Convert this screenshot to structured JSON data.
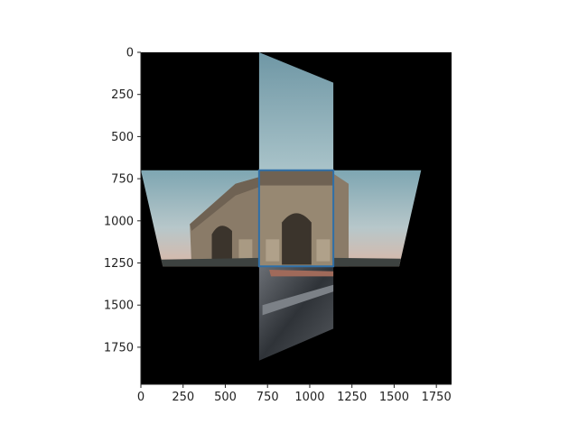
{
  "chart_data": {
    "type": "image",
    "title": "",
    "xlabel": "",
    "ylabel": "",
    "xlim": [
      0,
      1840
    ],
    "ylim": [
      1970,
      0
    ],
    "x_ticks": [
      0,
      250,
      500,
      750,
      1000,
      1250,
      1500,
      1750
    ],
    "y_ticks": [
      0,
      250,
      500,
      750,
      1000,
      1250,
      1500,
      1750
    ],
    "background_color": "#000000",
    "image_faces": [
      {
        "name": "top-face",
        "color": "#86aeb6",
        "points": [
          [
            700,
            0
          ],
          [
            1140,
            180
          ],
          [
            1140,
            700
          ],
          [
            700,
            700
          ]
        ]
      },
      {
        "name": "left-face",
        "color": "#7aa2b0",
        "points": [
          [
            0,
            700
          ],
          [
            700,
            700
          ],
          [
            700,
            1270
          ],
          [
            130,
            1270
          ]
        ]
      },
      {
        "name": "center-face",
        "color": "#8e8272",
        "points": [
          [
            700,
            700
          ],
          [
            1140,
            700
          ],
          [
            1140,
            1270
          ],
          [
            700,
            1270
          ]
        ]
      },
      {
        "name": "right-face",
        "color": "#98b7c0",
        "points": [
          [
            1140,
            700
          ],
          [
            1660,
            700
          ],
          [
            1530,
            1270
          ],
          [
            1140,
            1270
          ]
        ]
      },
      {
        "name": "bottom-face",
        "color": "#4a4f55",
        "points": [
          [
            700,
            1270
          ],
          [
            1140,
            1270
          ],
          [
            1140,
            1640
          ],
          [
            700,
            1830
          ]
        ]
      }
    ],
    "highlight_box": {
      "color": "#2f6fa8",
      "x": [
        700,
        1140
      ],
      "y": [
        700,
        1270
      ]
    }
  }
}
